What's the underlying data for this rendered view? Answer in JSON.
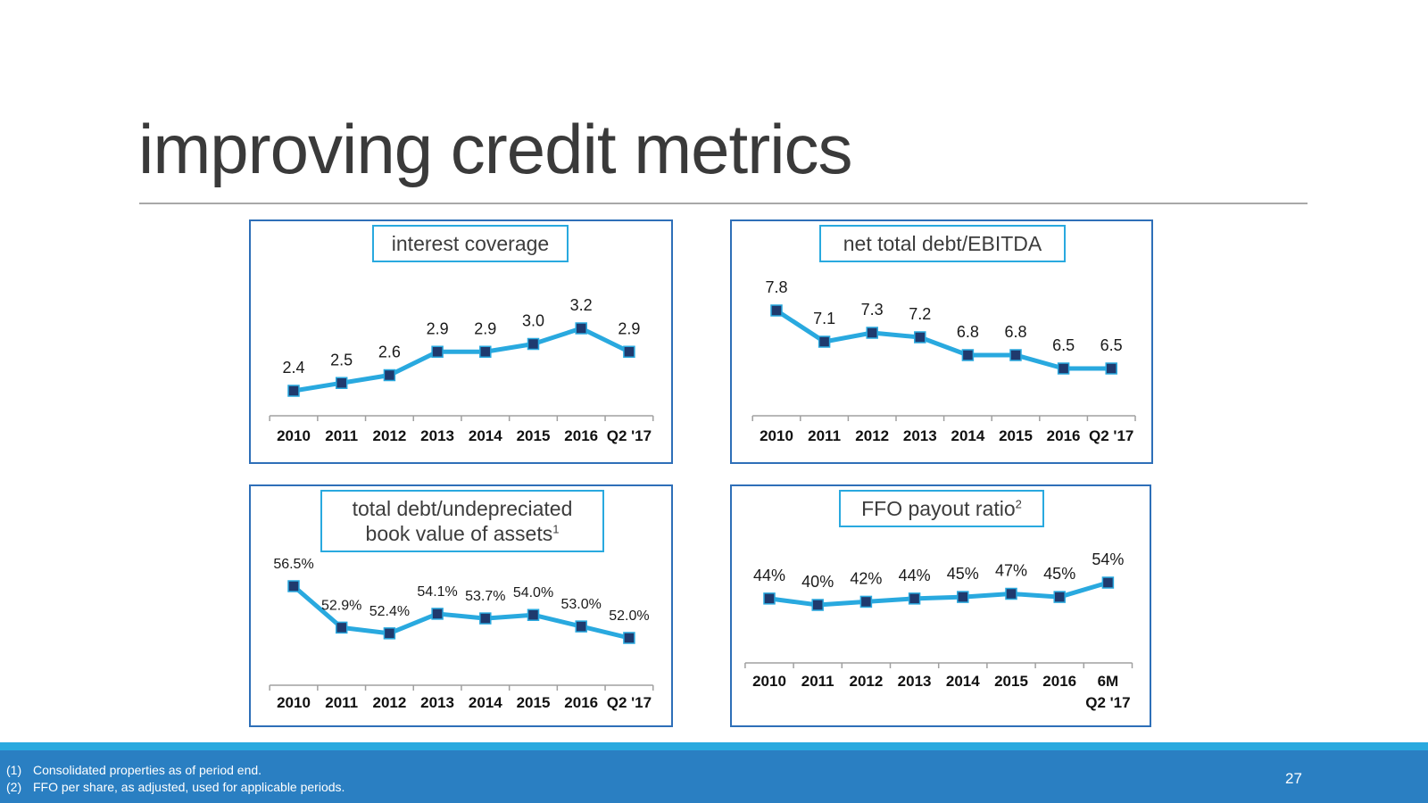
{
  "slide": {
    "title": "improving credit metrics",
    "page_number": "27"
  },
  "footnotes": [
    {
      "mark": "(1)",
      "text": "Consolidated properties as of period end."
    },
    {
      "mark": "(2)",
      "text": "FFO per share, as adjusted, used for applicable periods."
    }
  ],
  "colors": {
    "line": "#29a9df",
    "marker": "#1f3a6e",
    "panel_border": "#2e6fb8",
    "title_border": "#29a9df",
    "footer": "#2a7fc2"
  },
  "chart_data": [
    {
      "id": "interest-coverage",
      "type": "line",
      "title": "interest coverage",
      "title_sup": "",
      "categories": [
        "2010",
        "2011",
        "2012",
        "2013",
        "2014",
        "2015",
        "2016",
        "Q2 '17"
      ],
      "values": [
        2.4,
        2.5,
        2.6,
        2.9,
        2.9,
        3.0,
        3.2,
        2.9
      ],
      "labels": [
        "2.4",
        "2.5",
        "2.6",
        "2.9",
        "2.9",
        "3.0",
        "3.2",
        "2.9"
      ],
      "ylim": [
        1.8,
        3.4
      ]
    },
    {
      "id": "net-debt-ebitda",
      "type": "line",
      "title": "net total debt/EBITDA",
      "title_sup": "",
      "categories": [
        "2010",
        "2011",
        "2012",
        "2013",
        "2014",
        "2015",
        "2016",
        "Q2 '17"
      ],
      "values": [
        7.8,
        7.1,
        7.3,
        7.2,
        6.8,
        6.8,
        6.5,
        6.5
      ],
      "labels": [
        "7.8",
        "7.1",
        "7.3",
        "7.2",
        "6.8",
        "6.8",
        "6.5",
        "6.5"
      ],
      "ylim": [
        4.6,
        8.2
      ]
    },
    {
      "id": "debt-book-value",
      "type": "line",
      "title": "total debt/undepreciated book value of assets",
      "title_line1": "total debt/undepreciated",
      "title_line2": "book value of assets",
      "title_sup": "1",
      "categories": [
        "2010",
        "2011",
        "2012",
        "2013",
        "2014",
        "2015",
        "2016",
        "Q2 '17"
      ],
      "values": [
        56.5,
        52.9,
        52.4,
        54.1,
        53.7,
        54.0,
        53.0,
        52.0
      ],
      "labels": [
        "56.5%",
        "52.9%",
        "52.4%",
        "54.1%",
        "53.7%",
        "54.0%",
        "53.0%",
        "52.0%"
      ],
      "ylim": [
        48,
        58
      ]
    },
    {
      "id": "ffo-payout",
      "type": "line",
      "title": "FFO payout ratio",
      "title_sup": "2",
      "categories": [
        "2010",
        "2011",
        "2012",
        "2013",
        "2014",
        "2015",
        "2016",
        "6M Q2 '17"
      ],
      "category_lines": [
        [
          "2010"
        ],
        [
          "2011"
        ],
        [
          "2012"
        ],
        [
          "2013"
        ],
        [
          "2014"
        ],
        [
          "2015"
        ],
        [
          "2016"
        ],
        [
          "6M",
          "Q2 '17"
        ]
      ],
      "values": [
        44,
        40,
        42,
        44,
        45,
        47,
        45,
        54
      ],
      "labels": [
        "44%",
        "40%",
        "42%",
        "44%",
        "45%",
        "47%",
        "45%",
        "54%"
      ],
      "ylim": [
        0,
        100
      ]
    }
  ]
}
